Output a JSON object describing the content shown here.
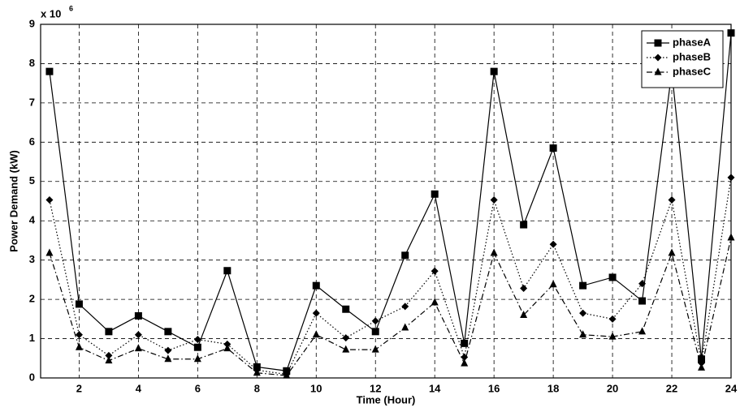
{
  "chart_data": {
    "type": "line",
    "xlabel": "Time (Hour)",
    "ylabel": "Power Demand (kW)",
    "y_offset_text": "x 10",
    "y_offset_exponent": "6",
    "x": [
      1,
      2,
      3,
      4,
      5,
      6,
      7,
      8,
      9,
      10,
      11,
      12,
      13,
      14,
      15,
      16,
      17,
      18,
      19,
      20,
      21,
      22,
      23,
      24
    ],
    "series": [
      {
        "name": "phaseA",
        "color": "#000000",
        "marker": "square",
        "line_style": "solid",
        "values": [
          7.8,
          1.88,
          1.18,
          1.58,
          1.18,
          0.78,
          2.73,
          0.28,
          0.18,
          2.35,
          1.75,
          1.18,
          3.12,
          4.68,
          0.88,
          7.8,
          3.9,
          5.85,
          2.35,
          2.56,
          1.96,
          7.8,
          0.48,
          8.78
        ]
      },
      {
        "name": "phaseB",
        "color": "#000000",
        "marker": "diamond",
        "line_style": "dotted",
        "values": [
          4.53,
          1.1,
          0.57,
          1.1,
          0.7,
          0.98,
          0.86,
          0.2,
          0.09,
          1.65,
          1.02,
          1.45,
          1.82,
          2.72,
          0.53,
          4.53,
          2.28,
          3.4,
          1.65,
          1.5,
          2.4,
          4.53,
          0.38,
          5.1
        ]
      },
      {
        "name": "phaseC",
        "color": "#000000",
        "marker": "triangle",
        "line_style": "dashdot",
        "values": [
          3.18,
          0.78,
          0.44,
          0.75,
          0.48,
          0.48,
          0.75,
          0.13,
          0.06,
          1.1,
          0.72,
          0.72,
          1.28,
          1.92,
          0.37,
          3.18,
          1.6,
          2.38,
          1.1,
          1.05,
          1.18,
          3.18,
          0.26,
          3.57
        ]
      }
    ],
    "xlim": [
      0.7,
      24
    ],
    "xticks": [
      2,
      4,
      6,
      8,
      10,
      12,
      14,
      16,
      18,
      20,
      22,
      24
    ],
    "ylim": [
      0,
      9
    ],
    "yticks": [
      0,
      1,
      2,
      3,
      4,
      5,
      6,
      7,
      8,
      9
    ],
    "grid": true,
    "legend": "upper right"
  }
}
